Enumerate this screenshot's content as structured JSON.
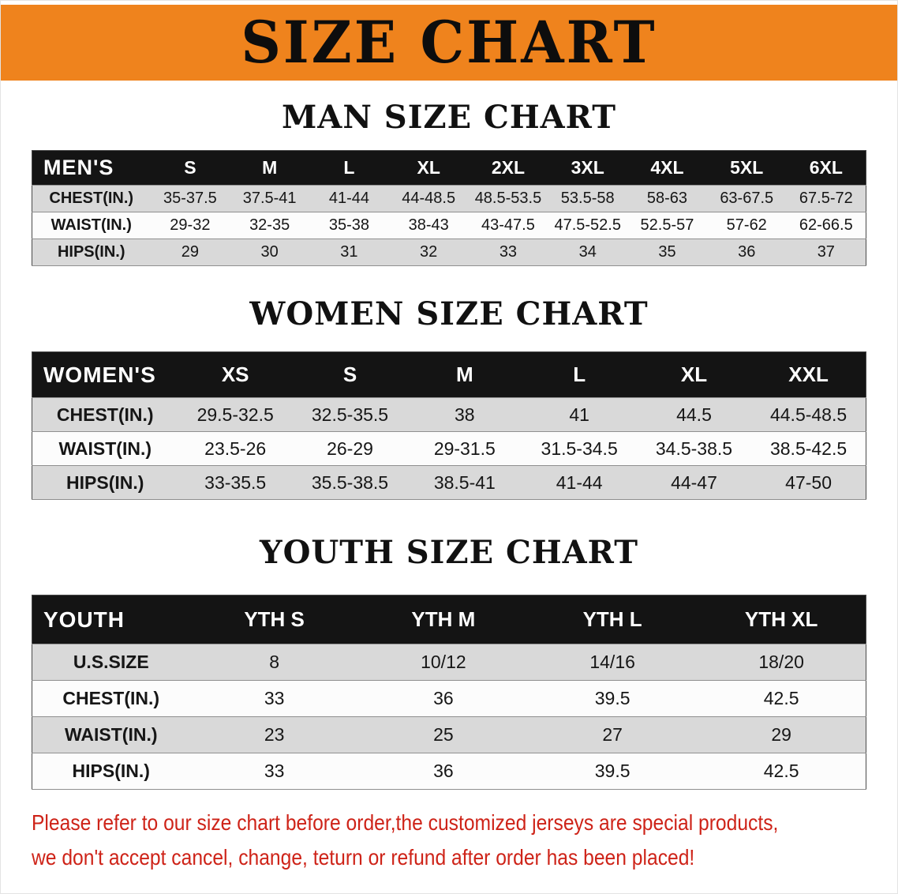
{
  "banner": {
    "title": "SIZE CHART",
    "bg_color": "#EF831D"
  },
  "sections": [
    {
      "heading": "MAN SIZE CHART",
      "table": {
        "header_label": "MEN'S",
        "columns": [
          "S",
          "M",
          "L",
          "XL",
          "2XL",
          "3XL",
          "4XL",
          "5XL",
          "6XL"
        ],
        "rows": [
          {
            "label": "CHEST(IN.)",
            "values": [
              "35-37.5",
              "37.5-41",
              "41-44",
              "44-48.5",
              "48.5-53.5",
              "53.5-58",
              "58-63",
              "63-67.5",
              "67.5-72"
            ]
          },
          {
            "label": "WAIST(IN.)",
            "values": [
              "29-32",
              "32-35",
              "35-38",
              "38-43",
              "43-47.5",
              "47.5-52.5",
              "52.5-57",
              "57-62",
              "62-66.5"
            ]
          },
          {
            "label": "HIPS(IN.)",
            "values": [
              "29",
              "30",
              "31",
              "32",
              "33",
              "34",
              "35",
              "36",
              "37"
            ]
          }
        ]
      }
    },
    {
      "heading": "WOMEN SIZE CHART",
      "table": {
        "header_label": "WOMEN'S",
        "columns": [
          "XS",
          "S",
          "M",
          "L",
          "XL",
          "XXL"
        ],
        "rows": [
          {
            "label": "CHEST(IN.)",
            "values": [
              "29.5-32.5",
              "32.5-35.5",
              "38",
              "41",
              "44.5",
              "44.5-48.5"
            ]
          },
          {
            "label": "WAIST(IN.)",
            "values": [
              "23.5-26",
              "26-29",
              "29-31.5",
              "31.5-34.5",
              "34.5-38.5",
              "38.5-42.5"
            ]
          },
          {
            "label": "HIPS(IN.)",
            "values": [
              "33-35.5",
              "35.5-38.5",
              "38.5-41",
              "41-44",
              "44-47",
              "47-50"
            ]
          }
        ]
      }
    },
    {
      "heading": "YOUTH SIZE CHART",
      "table": {
        "header_label": "YOUTH",
        "columns": [
          "YTH S",
          "YTH M",
          "YTH L",
          "YTH XL"
        ],
        "rows": [
          {
            "label": "U.S.SIZE",
            "values": [
              "8",
              "10/12",
              "14/16",
              "18/20"
            ]
          },
          {
            "label": "CHEST(IN.)",
            "values": [
              "33",
              "36",
              "39.5",
              "42.5"
            ]
          },
          {
            "label": "WAIST(IN.)",
            "values": [
              "23",
              "25",
              "27",
              "29"
            ]
          },
          {
            "label": "HIPS(IN.)",
            "values": [
              "33",
              "36",
              "39.5",
              "42.5"
            ]
          }
        ]
      }
    }
  ],
  "footer": {
    "line1": "Please refer to our size chart before order,the customized jerseys are special products,",
    "line2": "we don't accept cancel, change, teturn or refund after order has been placed!",
    "text_color": "#CE2318"
  }
}
